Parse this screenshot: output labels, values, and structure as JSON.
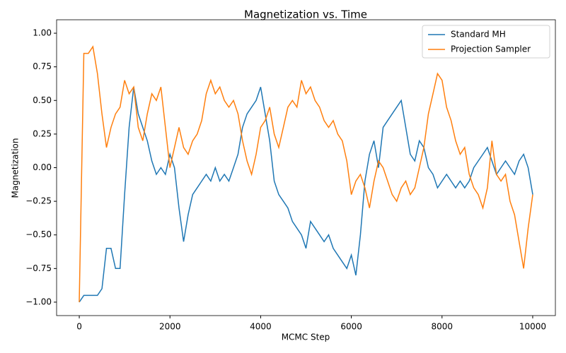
{
  "chart_data": {
    "type": "line",
    "title": "Magnetization vs. Time",
    "x_label": "MCMC Step",
    "y_label": "Magnetization",
    "x": [
      0,
      100,
      200,
      300,
      400,
      500,
      600,
      700,
      800,
      900,
      1000,
      1100,
      1200,
      1300,
      1400,
      1500,
      1600,
      1700,
      1800,
      1900,
      2000,
      2100,
      2200,
      2300,
      2400,
      2500,
      2600,
      2700,
      2800,
      2900,
      3000,
      3100,
      3200,
      3300,
      3400,
      3500,
      3600,
      3700,
      3800,
      3900,
      4000,
      4100,
      4200,
      4300,
      4400,
      4500,
      4600,
      4700,
      4800,
      4900,
      5000,
      5100,
      5200,
      5300,
      5400,
      5500,
      5600,
      5700,
      5800,
      5900,
      6000,
      6100,
      6200,
      6300,
      6400,
      6500,
      6600,
      6700,
      6800,
      6900,
      7000,
      7100,
      7200,
      7300,
      7400,
      7500,
      7600,
      7700,
      7800,
      7900,
      8000,
      8100,
      8200,
      8300,
      8400,
      8500,
      8600,
      8700,
      8800,
      8900,
      9000,
      9100,
      9200,
      9300,
      9400,
      9500,
      9600,
      9700,
      9800,
      9900,
      10000
    ],
    "series": [
      {
        "name": "Standard MH",
        "color": "#1f77b4",
        "values": [
          -1,
          -0.95,
          -0.95,
          -0.95,
          -0.95,
          -0.9,
          -0.6,
          -0.6,
          -0.75,
          -0.75,
          -0.2,
          0.3,
          0.6,
          0.4,
          0.3,
          0.2,
          0.05,
          -0.05,
          0.0,
          -0.05,
          0.1,
          0.0,
          -0.3,
          -0.55,
          -0.35,
          -0.2,
          -0.15,
          -0.1,
          -0.05,
          -0.1,
          0.0,
          -0.1,
          -0.05,
          -0.1,
          0.0,
          0.1,
          0.3,
          0.4,
          0.45,
          0.5,
          0.6,
          0.4,
          0.2,
          -0.1,
          -0.2,
          -0.25,
          -0.3,
          -0.4,
          -0.45,
          -0.5,
          -0.6,
          -0.4,
          -0.45,
          -0.5,
          -0.55,
          -0.5,
          -0.6,
          -0.65,
          -0.7,
          -0.75,
          -0.65,
          -0.8,
          -0.5,
          -0.1,
          0.1,
          0.2,
          0.0,
          0.3,
          0.35,
          0.4,
          0.45,
          0.5,
          0.3,
          0.1,
          0.05,
          0.2,
          0.15,
          0.0,
          -0.05,
          -0.15,
          -0.1,
          -0.05,
          -0.1,
          -0.15,
          -0.1,
          -0.15,
          -0.1,
          0.0,
          0.05,
          0.1,
          0.15,
          0.05,
          -0.05,
          0.0,
          0.05,
          0.0,
          -0.05,
          0.05,
          0.1,
          0.0,
          -0.2
        ]
      },
      {
        "name": "Projection Sampler",
        "color": "#ff7f0e",
        "values": [
          -1,
          0.85,
          0.85,
          0.9,
          0.7,
          0.4,
          0.15,
          0.3,
          0.4,
          0.45,
          0.65,
          0.55,
          0.6,
          0.3,
          0.2,
          0.4,
          0.55,
          0.5,
          0.6,
          0.3,
          0.0,
          0.15,
          0.3,
          0.15,
          0.1,
          0.2,
          0.25,
          0.35,
          0.55,
          0.65,
          0.55,
          0.6,
          0.5,
          0.45,
          0.5,
          0.4,
          0.2,
          0.05,
          -0.05,
          0.1,
          0.3,
          0.35,
          0.45,
          0.25,
          0.15,
          0.3,
          0.45,
          0.5,
          0.45,
          0.65,
          0.55,
          0.6,
          0.5,
          0.45,
          0.35,
          0.3,
          0.35,
          0.25,
          0.2,
          0.05,
          -0.2,
          -0.1,
          -0.05,
          -0.15,
          -0.3,
          -0.1,
          0.05,
          0.0,
          -0.1,
          -0.2,
          -0.25,
          -0.15,
          -0.1,
          -0.2,
          -0.15,
          0.0,
          0.15,
          0.4,
          0.55,
          0.7,
          0.65,
          0.45,
          0.35,
          0.2,
          0.1,
          0.15,
          -0.05,
          -0.15,
          -0.2,
          -0.3,
          -0.15,
          0.2,
          -0.05,
          -0.1,
          -0.05,
          -0.25,
          -0.35,
          -0.55,
          -0.75,
          -0.45,
          -0.2
        ]
      }
    ],
    "xlim": [
      -500,
      10500
    ],
    "xticks": [
      0,
      2000,
      4000,
      6000,
      8000,
      10000
    ],
    "ylim": [
      -1.1,
      1.1
    ],
    "yticks": [
      {
        "value": -1,
        "label": "−1.00"
      },
      {
        "value": -0.75,
        "label": "−0.75"
      },
      {
        "value": -0.5,
        "label": "−0.50"
      },
      {
        "value": -0.25,
        "label": "−0.25"
      },
      {
        "value": 0,
        "label": "0.00"
      },
      {
        "value": 0.25,
        "label": "0.25"
      },
      {
        "value": 0.5,
        "label": "0.50"
      },
      {
        "value": 0.75,
        "label": "0.75"
      },
      {
        "value": 1,
        "label": "1.00"
      }
    ],
    "legend": "upper right"
  }
}
